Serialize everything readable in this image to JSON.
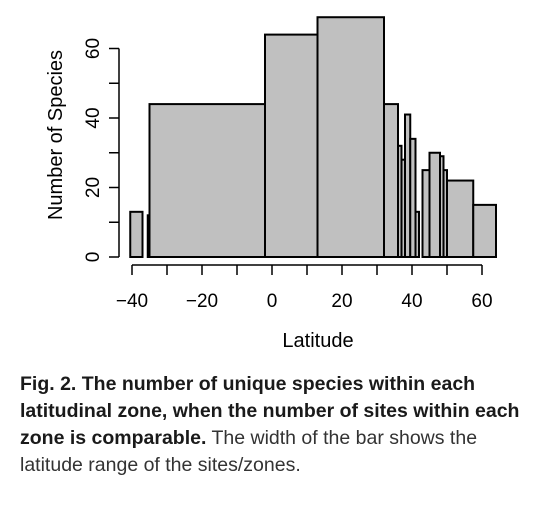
{
  "chart_data": {
    "type": "bar",
    "xlabel": "Latitude",
    "ylabel": "Number of Species",
    "xlim": [
      -43,
      65
    ],
    "ylim": [
      0,
      70
    ],
    "xticks": [
      -40,
      -30,
      -20,
      -10,
      0,
      10,
      20,
      30,
      40,
      50,
      60
    ],
    "xtick_labels": [
      "−40",
      "",
      "−20",
      "",
      "0",
      "",
      "20",
      "",
      "40",
      "",
      "60"
    ],
    "yticks": [
      0,
      10,
      20,
      30,
      40,
      50,
      60
    ],
    "ytick_labels": [
      "0",
      "",
      "20",
      "",
      "40",
      "",
      "60"
    ],
    "grid": false,
    "bars": [
      {
        "x0": -40.5,
        "x1": -37,
        "value": 13
      },
      {
        "x0": -35.5,
        "x1": -35,
        "value": 12
      },
      {
        "x0": -35,
        "x1": -2,
        "value": 44
      },
      {
        "x0": -2,
        "x1": 13,
        "value": 64
      },
      {
        "x0": 13,
        "x1": 32,
        "value": 69
      },
      {
        "x0": 32,
        "x1": 36,
        "value": 44
      },
      {
        "x0": 36,
        "x1": 37,
        "value": 32
      },
      {
        "x0": 37,
        "x1": 38,
        "value": 28
      },
      {
        "x0": 38,
        "x1": 39.5,
        "value": 41
      },
      {
        "x0": 39.5,
        "x1": 41,
        "value": 34
      },
      {
        "x0": 41,
        "x1": 42,
        "value": 13
      },
      {
        "x0": 43,
        "x1": 45,
        "value": 25
      },
      {
        "x0": 45,
        "x1": 48,
        "value": 30
      },
      {
        "x0": 48,
        "x1": 49,
        "value": 29
      },
      {
        "x0": 49,
        "x1": 50,
        "value": 25
      },
      {
        "x0": 50,
        "x1": 57.5,
        "value": 22
      },
      {
        "x0": 57.5,
        "x1": 64,
        "value": 15
      }
    ],
    "bar_color": "#c0c0c0",
    "edge_color": "#000000"
  },
  "caption": {
    "bold": "Fig. 2. The number of unique species within each latitudinal zone, when the number of sites within each zone is comparable.",
    "text": " The width of the bar shows the latitude range of the sites/zones."
  }
}
